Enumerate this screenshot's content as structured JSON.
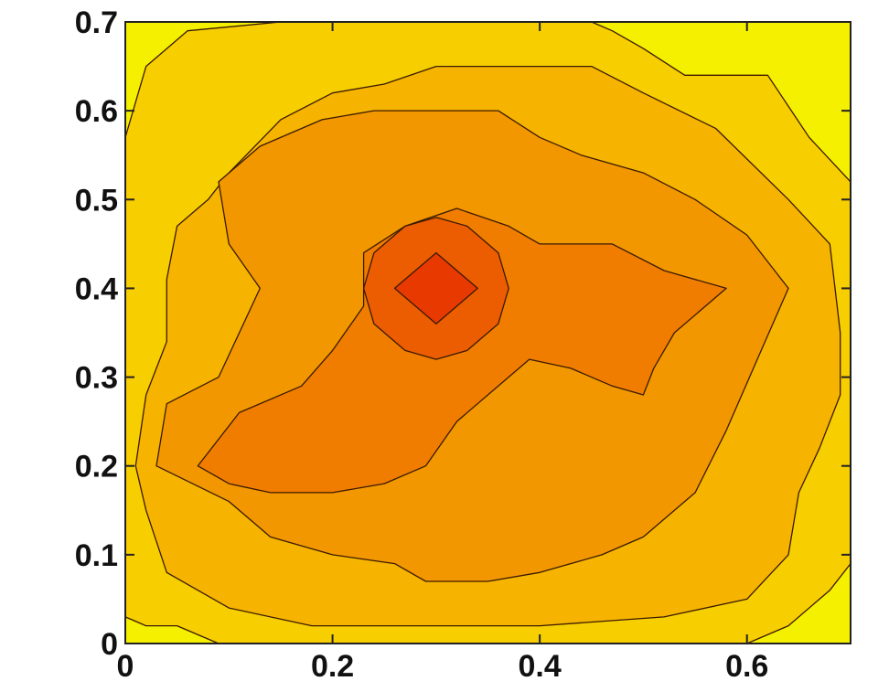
{
  "chart_data": {
    "type": "heatmap",
    "subtype": "filled-contour",
    "title": "",
    "xlabel": "",
    "ylabel": "",
    "xlim": [
      0,
      0.7
    ],
    "ylim": [
      0,
      0.7
    ],
    "x_ticks": [
      0,
      0.2,
      0.4,
      0.6
    ],
    "y_ticks": [
      0,
      0.1,
      0.2,
      0.3,
      0.4,
      0.5,
      0.6,
      0.7
    ],
    "x_tick_labels": [
      "0",
      "0.2",
      "0.4",
      "0.6"
    ],
    "y_tick_labels": [
      "0",
      "0.1",
      "0.2",
      "0.3",
      "0.4",
      "0.5",
      "0.6",
      "0.7"
    ],
    "grid": false,
    "colormap": "autumn (yellow = low, red = high)",
    "peak": {
      "x": 0.3,
      "y": 0.4
    },
    "level_colors": [
      "#f5f000",
      "#f7ce00",
      "#f6b400",
      "#f39700",
      "#f07d00",
      "#ec5c00",
      "#e83a00"
    ],
    "contours": [
      {
        "level": 1,
        "points": [
          [
            0,
            0.57
          ],
          [
            0.02,
            0.65
          ],
          [
            0.06,
            0.69
          ],
          [
            0.15,
            0.7
          ],
          [
            0.35,
            0.7
          ],
          [
            0.45,
            0.7
          ],
          [
            0.47,
            0.69
          ],
          [
            0.5,
            0.67
          ],
          [
            0.54,
            0.64
          ],
          [
            0.62,
            0.64
          ],
          [
            0.66,
            0.57
          ],
          [
            0.7,
            0.52
          ],
          [
            0.7,
            0.09
          ],
          [
            0.68,
            0.06
          ],
          [
            0.64,
            0.02
          ],
          [
            0.6,
            0
          ],
          [
            0.09,
            0
          ],
          [
            0.05,
            0.02
          ],
          [
            0.02,
            0.02
          ],
          [
            0,
            0.03
          ]
        ]
      },
      {
        "level": 2,
        "points": [
          [
            0.04,
            0.34
          ],
          [
            0.04,
            0.41
          ],
          [
            0.05,
            0.47
          ],
          [
            0.08,
            0.5
          ],
          [
            0.1,
            0.53
          ],
          [
            0.15,
            0.59
          ],
          [
            0.2,
            0.62
          ],
          [
            0.25,
            0.63
          ],
          [
            0.3,
            0.65
          ],
          [
            0.38,
            0.65
          ],
          [
            0.45,
            0.65
          ],
          [
            0.5,
            0.62
          ],
          [
            0.57,
            0.58
          ],
          [
            0.64,
            0.5
          ],
          [
            0.68,
            0.45
          ],
          [
            0.69,
            0.35
          ],
          [
            0.69,
            0.28
          ],
          [
            0.67,
            0.22
          ],
          [
            0.65,
            0.17
          ],
          [
            0.64,
            0.1
          ],
          [
            0.6,
            0.05
          ],
          [
            0.52,
            0.03
          ],
          [
            0.4,
            0.02
          ],
          [
            0.3,
            0.02
          ],
          [
            0.18,
            0.02
          ],
          [
            0.1,
            0.04
          ],
          [
            0.04,
            0.08
          ],
          [
            0.02,
            0.15
          ],
          [
            0.01,
            0.2
          ],
          [
            0.02,
            0.28
          ]
        ]
      },
      {
        "level": 3,
        "points": [
          [
            0.09,
            0.3
          ],
          [
            0.13,
            0.4
          ],
          [
            0.1,
            0.45
          ],
          [
            0.09,
            0.52
          ],
          [
            0.13,
            0.56
          ],
          [
            0.19,
            0.59
          ],
          [
            0.24,
            0.6
          ],
          [
            0.3,
            0.6
          ],
          [
            0.36,
            0.6
          ],
          [
            0.4,
            0.57
          ],
          [
            0.44,
            0.55
          ],
          [
            0.5,
            0.53
          ],
          [
            0.55,
            0.5
          ],
          [
            0.6,
            0.46
          ],
          [
            0.64,
            0.4
          ],
          [
            0.61,
            0.32
          ],
          [
            0.58,
            0.24
          ],
          [
            0.55,
            0.17
          ],
          [
            0.5,
            0.12
          ],
          [
            0.46,
            0.1
          ],
          [
            0.4,
            0.08
          ],
          [
            0.35,
            0.07
          ],
          [
            0.29,
            0.07
          ],
          [
            0.26,
            0.09
          ],
          [
            0.2,
            0.1
          ],
          [
            0.14,
            0.12
          ],
          [
            0.1,
            0.16
          ],
          [
            0.03,
            0.2
          ],
          [
            0.04,
            0.27
          ]
        ]
      },
      {
        "level": 4,
        "points": [
          [
            0.07,
            0.2
          ],
          [
            0.11,
            0.26
          ],
          [
            0.17,
            0.29
          ],
          [
            0.2,
            0.33
          ],
          [
            0.23,
            0.38
          ],
          [
            0.23,
            0.44
          ],
          [
            0.27,
            0.47
          ],
          [
            0.32,
            0.49
          ],
          [
            0.37,
            0.47
          ],
          [
            0.4,
            0.45
          ],
          [
            0.47,
            0.45
          ],
          [
            0.52,
            0.42
          ],
          [
            0.58,
            0.4
          ],
          [
            0.53,
            0.35
          ],
          [
            0.51,
            0.31
          ],
          [
            0.5,
            0.28
          ],
          [
            0.47,
            0.29
          ],
          [
            0.43,
            0.31
          ],
          [
            0.39,
            0.32
          ],
          [
            0.36,
            0.29
          ],
          [
            0.32,
            0.25
          ],
          [
            0.29,
            0.2
          ],
          [
            0.25,
            0.18
          ],
          [
            0.2,
            0.17
          ],
          [
            0.14,
            0.17
          ],
          [
            0.1,
            0.18
          ]
        ]
      },
      {
        "level": 5,
        "points": [
          [
            0.23,
            0.4
          ],
          [
            0.24,
            0.44
          ],
          [
            0.27,
            0.47
          ],
          [
            0.3,
            0.48
          ],
          [
            0.33,
            0.47
          ],
          [
            0.36,
            0.44
          ],
          [
            0.37,
            0.4
          ],
          [
            0.36,
            0.36
          ],
          [
            0.33,
            0.33
          ],
          [
            0.3,
            0.32
          ],
          [
            0.27,
            0.33
          ],
          [
            0.24,
            0.36
          ]
        ]
      },
      {
        "level": 6,
        "points": [
          [
            0.26,
            0.4
          ],
          [
            0.3,
            0.44
          ],
          [
            0.34,
            0.4
          ],
          [
            0.3,
            0.36
          ]
        ]
      }
    ]
  }
}
